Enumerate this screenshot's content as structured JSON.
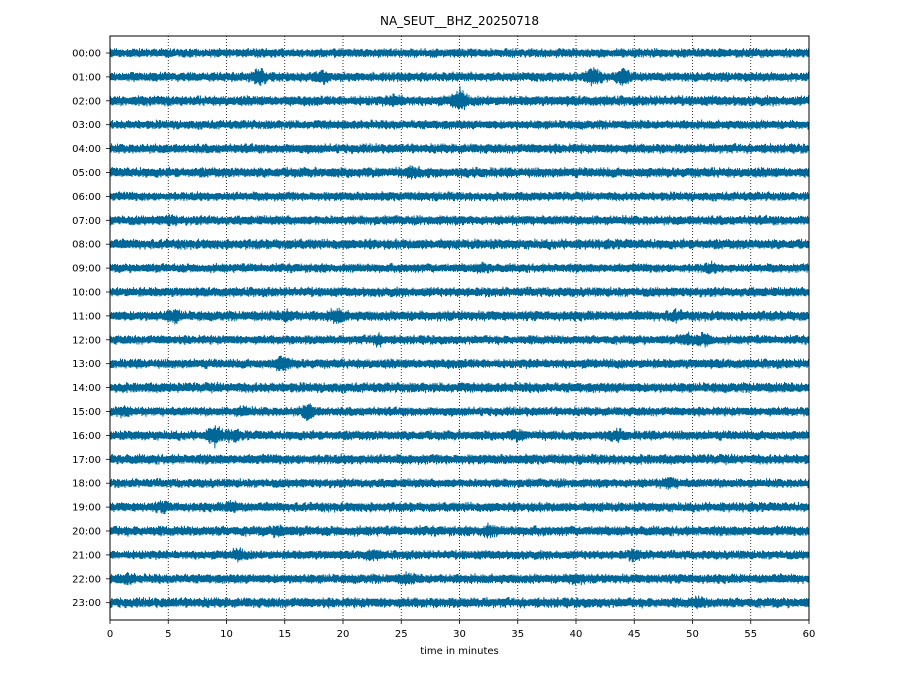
{
  "chart_data": {
    "type": "line",
    "title": "NA_SEUT__BHZ_20250718",
    "xlabel": "time in minutes",
    "ylabel": "",
    "xlim": [
      0,
      60
    ],
    "x_ticks": [
      0,
      5,
      10,
      15,
      20,
      25,
      30,
      35,
      40,
      45,
      50,
      55,
      60
    ],
    "x_grid": "dotted vertical lines at every 5 minutes",
    "trace_color": "#006898",
    "hour_labels": [
      "00:00",
      "01:00",
      "02:00",
      "03:00",
      "04:00",
      "05:00",
      "06:00",
      "07:00",
      "08:00",
      "09:00",
      "10:00",
      "11:00",
      "12:00",
      "13:00",
      "14:00",
      "15:00",
      "16:00",
      "17:00",
      "18:00",
      "19:00",
      "20:00",
      "21:00",
      "22:00",
      "23:00"
    ],
    "series": [
      {
        "label": "00:00",
        "bursts": []
      },
      {
        "label": "01:00",
        "bursts": [
          [
            12.8,
            2.0
          ],
          [
            18.2,
            1.6
          ],
          [
            41.5,
            2.2
          ],
          [
            44.0,
            2.0
          ]
        ]
      },
      {
        "label": "02:00",
        "bursts": [
          [
            24.5,
            1.5
          ],
          [
            30.0,
            2.6
          ]
        ]
      },
      {
        "label": "03:00",
        "bursts": []
      },
      {
        "label": "04:00",
        "bursts": []
      },
      {
        "label": "05:00",
        "bursts": [
          [
            26.0,
            1.5
          ]
        ]
      },
      {
        "label": "06:00",
        "bursts": []
      },
      {
        "label": "07:00",
        "bursts": [
          [
            5.2,
            1.4
          ]
        ]
      },
      {
        "label": "08:00",
        "bursts": []
      },
      {
        "label": "09:00",
        "bursts": [
          [
            32.0,
            1.4
          ],
          [
            51.5,
            1.5
          ]
        ]
      },
      {
        "label": "10:00",
        "bursts": []
      },
      {
        "label": "11:00",
        "bursts": [
          [
            5.5,
            1.7
          ],
          [
            15.2,
            1.5
          ],
          [
            19.5,
            1.8
          ],
          [
            48.5,
            1.5
          ]
        ]
      },
      {
        "label": "12:00",
        "bursts": [
          [
            23.0,
            1.6
          ],
          [
            49.5,
            1.8
          ],
          [
            51.0,
            1.8
          ]
        ]
      },
      {
        "label": "13:00",
        "bursts": [
          [
            14.8,
            2.0
          ]
        ]
      },
      {
        "label": "14:00",
        "bursts": []
      },
      {
        "label": "15:00",
        "bursts": [
          [
            1.0,
            1.6
          ],
          [
            11.5,
            1.5
          ],
          [
            17.0,
            2.2
          ]
        ]
      },
      {
        "label": "16:00",
        "bursts": [
          [
            9.0,
            2.4
          ],
          [
            10.5,
            1.6
          ],
          [
            35.0,
            1.5
          ],
          [
            43.5,
            1.5
          ]
        ]
      },
      {
        "label": "17:00",
        "bursts": []
      },
      {
        "label": "18:00",
        "bursts": [
          [
            48.0,
            1.6
          ]
        ]
      },
      {
        "label": "19:00",
        "bursts": [
          [
            4.5,
            1.5
          ],
          [
            10.5,
            1.6
          ]
        ]
      },
      {
        "label": "20:00",
        "bursts": [
          [
            14.5,
            1.5
          ],
          [
            32.5,
            1.6
          ]
        ]
      },
      {
        "label": "21:00",
        "bursts": [
          [
            11.0,
            1.7
          ],
          [
            22.5,
            1.5
          ],
          [
            45.0,
            1.6
          ]
        ]
      },
      {
        "label": "22:00",
        "bursts": [
          [
            1.5,
            1.5
          ],
          [
            25.5,
            1.5
          ],
          [
            40.0,
            1.5
          ]
        ]
      },
      {
        "label": "23:00",
        "bursts": [
          [
            50.5,
            1.4
          ]
        ]
      }
    ]
  }
}
